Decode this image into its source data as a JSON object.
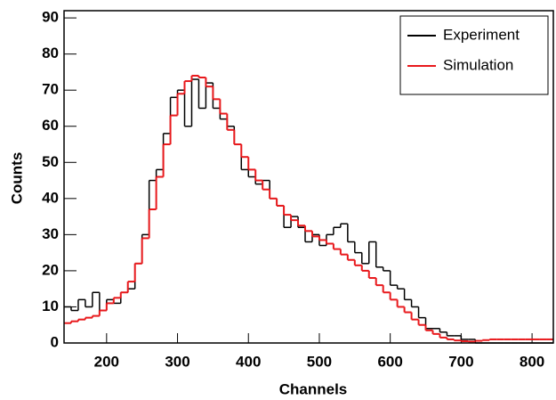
{
  "chart_data": {
    "type": "histogram",
    "xlabel": "Channels",
    "ylabel": "Counts",
    "bins": [
      140,
      150,
      160,
      170,
      180,
      190,
      200,
      210,
      220,
      230,
      240,
      250,
      260,
      270,
      280,
      290,
      300,
      310,
      320,
      330,
      340,
      350,
      360,
      370,
      380,
      390,
      400,
      410,
      420,
      430,
      440,
      450,
      460,
      470,
      480,
      490,
      500,
      510,
      520,
      530,
      540,
      550,
      560,
      570,
      580,
      590,
      600,
      610,
      620,
      630,
      640,
      650,
      660,
      670,
      680,
      690,
      700,
      710,
      720,
      730,
      740,
      750,
      760,
      770,
      780,
      790,
      800,
      810,
      820,
      830
    ],
    "series": [
      {
        "name": "Experiment",
        "color": "#000000",
        "values": [
          10,
          9,
          12,
          10,
          14,
          9,
          12,
          11,
          14,
          15,
          22,
          30,
          45,
          48,
          58,
          68,
          70,
          60,
          73,
          65,
          72,
          65,
          62,
          60,
          55,
          48,
          46,
          44,
          45,
          40,
          38,
          32,
          35,
          32,
          28,
          30,
          27,
          30,
          32,
          33,
          28,
          25,
          22,
          28,
          21,
          20,
          16,
          15,
          12,
          10,
          7,
          4,
          4,
          3,
          2,
          2,
          1,
          1,
          0,
          0,
          0,
          0,
          0,
          0,
          0,
          0,
          0,
          0,
          0
        ]
      },
      {
        "name": "Simulation",
        "color": "#e8191c",
        "values": [
          5.5,
          6,
          6.5,
          7,
          7.5,
          9,
          11,
          12.5,
          14,
          17,
          22,
          29,
          37,
          46,
          55,
          63,
          69,
          72.5,
          74,
          73.5,
          71,
          67.5,
          63.5,
          59,
          55,
          51.5,
          48,
          45,
          42.5,
          40,
          38,
          35.5,
          34,
          32.5,
          31,
          29.5,
          28.5,
          27.5,
          26,
          24.5,
          23,
          21.5,
          20,
          18,
          16,
          14,
          12,
          10,
          8.5,
          6.5,
          5,
          3.5,
          2.5,
          1.5,
          1,
          0.7,
          0.5,
          0.4,
          0.6,
          0.8,
          1,
          1,
          1,
          1,
          1,
          1,
          1,
          1,
          1
        ]
      }
    ],
    "xlim": [
      140,
      830
    ],
    "ylim": [
      0,
      92
    ],
    "xticks": [
      200,
      300,
      400,
      500,
      600,
      700,
      800
    ],
    "yticks": [
      0,
      10,
      20,
      30,
      40,
      50,
      60,
      70,
      80,
      90
    ],
    "legend": "top-right"
  }
}
